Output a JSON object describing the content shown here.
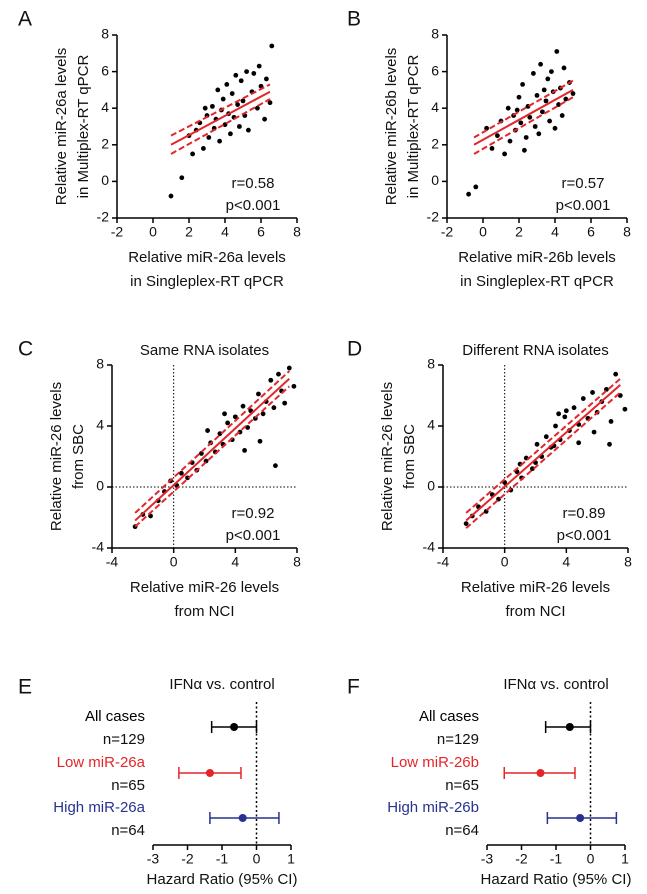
{
  "chart_data": [
    {
      "type": "scatter",
      "panel_label": "A",
      "ylabel": [
        "Relative miR-26a levels",
        "in Multiplex-RT qPCR"
      ],
      "xlabel": [
        "Relative miR-26a levels",
        "in Singleplex-RT qPCR"
      ],
      "annotations": [
        "r=0.58",
        "p<0.001"
      ],
      "color": "#000000",
      "fit_color": "#e3262a",
      "x": [
        1.0,
        1.6,
        2.0,
        2.2,
        2.4,
        2.6,
        2.8,
        3.0,
        3.1,
        3.3,
        3.4,
        3.5,
        3.6,
        3.7,
        3.8,
        3.9,
        4.0,
        4.1,
        4.2,
        4.3,
        4.4,
        4.5,
        4.6,
        4.7,
        4.8,
        4.9,
        5.0,
        5.1,
        5.2,
        5.3,
        5.5,
        5.6,
        5.8,
        5.9,
        6.0,
        6.2,
        6.3,
        6.5,
        6.6,
        2.9
      ],
      "y": [
        -0.8,
        0.2,
        2.5,
        1.5,
        2.8,
        3.2,
        1.8,
        3.6,
        2.4,
        4.1,
        2.9,
        3.4,
        5.0,
        2.2,
        3.9,
        4.5,
        3.1,
        5.3,
        3.7,
        2.6,
        4.8,
        3.5,
        5.8,
        4.2,
        3.0,
        5.5,
        4.4,
        3.6,
        6.0,
        2.8,
        4.9,
        5.9,
        4.0,
        6.3,
        5.2,
        3.4,
        5.6,
        4.3,
        7.4,
        4.0
      ],
      "fit": {
        "x": [
          1,
          6.5
        ],
        "y": [
          2.0,
          4.9
        ],
        "upper": [
          2.5,
          5.3
        ],
        "lower": [
          1.5,
          4.5
        ]
      },
      "xlim": [
        -2,
        8
      ],
      "ylim": [
        -2,
        8
      ],
      "xticks": [
        -2,
        0,
        2,
        4,
        6,
        8
      ],
      "yticks": [
        -2,
        0,
        2,
        4,
        6,
        8
      ],
      "zero_lines": false
    },
    {
      "type": "scatter",
      "panel_label": "B",
      "ylabel": [
        "Relative miR-26b levels",
        "in Multiplex-RT qPCR"
      ],
      "xlabel": [
        "Relative miR-26b levels",
        "in Singleplex-RT qPCR"
      ],
      "annotations": [
        "r=0.57",
        "p<0.001"
      ],
      "color": "#000000",
      "fit_color": "#e3262a",
      "x": [
        -0.8,
        -0.4,
        0.2,
        0.5,
        0.8,
        1.0,
        1.2,
        1.4,
        1.5,
        1.7,
        1.8,
        2.0,
        2.1,
        2.2,
        2.4,
        2.5,
        2.6,
        2.8,
        2.9,
        3.0,
        3.1,
        3.2,
        3.3,
        3.5,
        3.6,
        3.7,
        3.8,
        3.9,
        4.0,
        4.1,
        4.2,
        4.3,
        4.4,
        4.5,
        4.6,
        4.8,
        5.0,
        2.3,
        3.4,
        1.9
      ],
      "y": [
        -0.7,
        -0.3,
        2.9,
        1.8,
        2.5,
        3.3,
        1.5,
        4.0,
        2.2,
        3.6,
        2.8,
        4.6,
        3.2,
        5.3,
        2.4,
        4.1,
        3.5,
        5.9,
        3.0,
        4.7,
        2.6,
        6.4,
        3.8,
        4.4,
        5.6,
        3.3,
        6.0,
        4.9,
        2.9,
        7.1,
        4.2,
        5.1,
        3.6,
        6.2,
        4.5,
        5.4,
        4.8,
        1.7,
        5.0,
        3.9
      ],
      "fit": {
        "x": [
          -0.5,
          5
        ],
        "y": [
          2.0,
          5.0
        ],
        "upper": [
          2.4,
          5.5
        ],
        "lower": [
          1.5,
          4.6
        ]
      },
      "xlim": [
        -2,
        8
      ],
      "ylim": [
        -2,
        8
      ],
      "xticks": [
        -2,
        0,
        2,
        4,
        6,
        8
      ],
      "yticks": [
        -2,
        0,
        2,
        4,
        6,
        8
      ],
      "zero_lines": false
    },
    {
      "type": "scatter",
      "panel_label": "C",
      "title": "Same RNA isolates",
      "ylabel": [
        "Relative miR-26 levels",
        "from SBC"
      ],
      "xlabel": [
        "Relative miR-26 levels",
        "from NCI"
      ],
      "annotations": [
        "r=0.92",
        "p<0.001"
      ],
      "color": "#000000",
      "fit_color": "#e3262a",
      "x": [
        -2.5,
        -2.0,
        -1.5,
        -1.0,
        -0.6,
        -0.2,
        0.2,
        0.5,
        0.9,
        1.2,
        1.5,
        1.8,
        2.1,
        2.4,
        2.7,
        3.0,
        3.2,
        3.5,
        3.8,
        4.0,
        4.3,
        4.5,
        4.8,
        5.0,
        5.3,
        5.5,
        5.8,
        6.0,
        6.3,
        6.5,
        6.8,
        7.0,
        7.2,
        7.5,
        7.8,
        3.3,
        4.6,
        2.2,
        5.6,
        6.6
      ],
      "y": [
        -2.6,
        -1.8,
        -1.9,
        -0.9,
        -0.3,
        0.4,
        0.1,
        0.9,
        0.6,
        1.6,
        1.1,
        2.2,
        1.7,
        2.9,
        2.3,
        3.5,
        2.8,
        4.2,
        3.1,
        4.6,
        3.6,
        5.3,
        3.9,
        5.0,
        4.5,
        6.1,
        4.8,
        5.6,
        7.0,
        5.2,
        7.4,
        6.3,
        5.5,
        7.8,
        6.6,
        4.8,
        2.4,
        3.7,
        3.0,
        1.4
      ],
      "fit": {
        "x": [
          -2.5,
          7.5
        ],
        "y": [
          -2.2,
          7.1
        ],
        "upper": [
          -1.7,
          7.6
        ],
        "lower": [
          -2.6,
          6.6
        ]
      },
      "xlim": [
        -4,
        8
      ],
      "ylim": [
        -4,
        8
      ],
      "xticks": [
        -4,
        0,
        4,
        8
      ],
      "yticks": [
        -4,
        0,
        4,
        8
      ],
      "zero_lines": true
    },
    {
      "type": "scatter",
      "panel_label": "D",
      "title": "Different RNA isolates",
      "ylabel": [
        "Relative miR-26 levels",
        "from SBC"
      ],
      "xlabel": [
        "Relative miR-26 levels",
        "from NCI"
      ],
      "annotations": [
        "r=0.89",
        "p<0.001"
      ],
      "color": "#000000",
      "fit_color": "#e3262a",
      "x": [
        -2.5,
        -2.1,
        -1.7,
        -1.2,
        -0.8,
        -0.4,
        0.0,
        0.4,
        0.8,
        1.1,
        1.4,
        1.8,
        2.1,
        2.4,
        2.7,
        3.0,
        3.3,
        3.6,
        3.9,
        4.2,
        4.5,
        4.8,
        5.1,
        5.4,
        5.7,
        6.0,
        6.3,
        6.6,
        6.9,
        7.2,
        7.5,
        7.8,
        2.0,
        3.5,
        4.8,
        5.8,
        6.8,
        1.0,
        3.2,
        4.0
      ],
      "y": [
        -2.4,
        -1.9,
        -1.3,
        -1.6,
        -0.5,
        -0.8,
        0.3,
        -0.2,
        1.0,
        0.6,
        1.9,
        1.2,
        2.8,
        2.0,
        3.3,
        2.6,
        4.0,
        3.1,
        4.6,
        3.7,
        5.2,
        4.1,
        5.8,
        4.5,
        6.2,
        4.9,
        5.6,
        6.4,
        4.3,
        7.4,
        6.0,
        5.1,
        1.6,
        4.8,
        2.9,
        3.6,
        2.8,
        1.5,
        2.7,
        5.0
      ],
      "fit": {
        "x": [
          -2.5,
          7.5
        ],
        "y": [
          -2.2,
          6.7
        ],
        "upper": [
          -1.7,
          7.1
        ],
        "lower": [
          -2.7,
          6.2
        ]
      },
      "xlim": [
        -4,
        8
      ],
      "ylim": [
        -4,
        8
      ],
      "xticks": [
        -4,
        0,
        4,
        8
      ],
      "yticks": [
        -4,
        0,
        4,
        8
      ],
      "zero_lines": true
    },
    {
      "type": "forest",
      "panel_label": "E",
      "title": "IFNα vs. control",
      "xlabel": "Hazard Ratio (95% CI)",
      "categories": [
        "All cases",
        "Low miR-26a",
        "High miR-26a"
      ],
      "n_labels": [
        "n=129",
        "n=65",
        "n=64"
      ],
      "colors": [
        "#000000",
        "#e3262a",
        "#27328f"
      ],
      "values": [
        -0.65,
        -1.35,
        -0.4
      ],
      "lower": [
        -1.3,
        -2.25,
        -1.35
      ],
      "upper": [
        0,
        -0.45,
        0.65
      ],
      "reference": 0,
      "xlim": [
        -3,
        1
      ],
      "xticks": [
        -3,
        -2,
        -1,
        0,
        1
      ]
    },
    {
      "type": "forest",
      "panel_label": "F",
      "title": "IFNα vs. control",
      "xlabel": "Hazard Ratio (95% CI)",
      "categories": [
        "All cases",
        "Low miR-26b",
        "High miR-26b"
      ],
      "n_labels": [
        "n=129",
        "n=65",
        "n=64"
      ],
      "colors": [
        "#000000",
        "#e3262a",
        "#27328f"
      ],
      "values": [
        -0.6,
        -1.45,
        -0.3
      ],
      "lower": [
        -1.3,
        -2.5,
        -1.25
      ],
      "upper": [
        0,
        -0.45,
        0.75
      ],
      "reference": 0,
      "xlim": [
        -3,
        1
      ],
      "xticks": [
        -3,
        -2,
        -1,
        0,
        1
      ]
    }
  ]
}
